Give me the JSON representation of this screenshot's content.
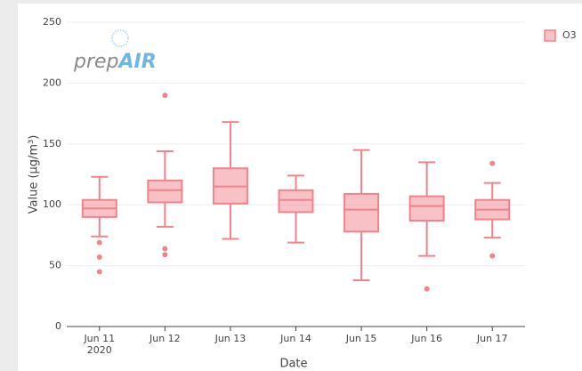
{
  "chart_data": {
    "type": "box",
    "logo": {
      "prefix": "prep",
      "suffix": "AIR"
    },
    "xlabel": "Date",
    "ylabel": "Value (µg/m³)",
    "categories": [
      "Jun 11",
      "Jun 12",
      "Jun 13",
      "Jun 14",
      "Jun 15",
      "Jun 16",
      "Jun 17"
    ],
    "first_category_year": "2020",
    "ylim": [
      0,
      250
    ],
    "yticks": [
      0,
      50,
      100,
      150,
      200,
      250
    ],
    "grid": true,
    "series": [
      {
        "name": "O3",
        "color": "#f0848c",
        "boxes": [
          {
            "min": 74,
            "q1": 90,
            "median": 97,
            "q3": 104,
            "max": 123,
            "outliers": [
              69,
              57,
              45
            ]
          },
          {
            "min": 82,
            "q1": 102,
            "median": 112,
            "q3": 120,
            "max": 144,
            "outliers": [
              190,
              64,
              59
            ]
          },
          {
            "min": 72,
            "q1": 101,
            "median": 115,
            "q3": 130,
            "max": 168,
            "outliers": []
          },
          {
            "min": 69,
            "q1": 94,
            "median": 104,
            "q3": 112,
            "max": 124,
            "outliers": []
          },
          {
            "min": 38,
            "q1": 78,
            "median": 96,
            "q3": 109,
            "max": 145,
            "outliers": []
          },
          {
            "min": 58,
            "q1": 87,
            "median": 99,
            "q3": 107,
            "max": 135,
            "outliers": [
              31
            ]
          },
          {
            "min": 73,
            "q1": 88,
            "median": 96,
            "q3": 104,
            "max": 118,
            "outliers": [
              134,
              58
            ]
          }
        ]
      }
    ]
  }
}
